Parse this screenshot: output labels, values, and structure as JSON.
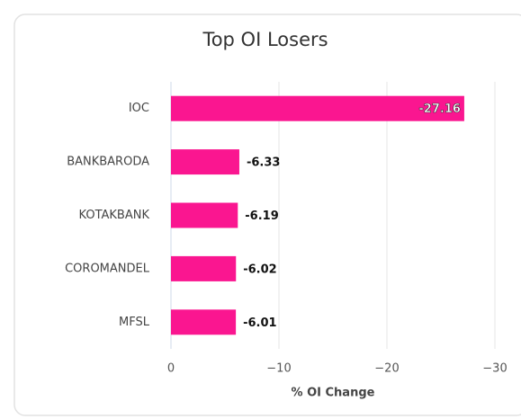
{
  "chart_data": {
    "type": "bar",
    "orientation": "horizontal",
    "title": "Top OI Losers",
    "categories": [
      "IOC",
      "BANKBARODA",
      "KOTAKBANK",
      "COROMANDEL",
      "MFSL"
    ],
    "values": [
      -27.16,
      -6.33,
      -6.19,
      -6.02,
      -6.01
    ],
    "color": "#fa1690",
    "xlabel": "% OI Change",
    "xlim": [
      0,
      -30
    ],
    "xticks": [
      0,
      {
        "value": -10,
        "label": "−10"
      },
      {
        "value": -20,
        "label": "−20"
      },
      {
        "value": -30,
        "label": "−30"
      }
    ],
    "grid": true
  }
}
